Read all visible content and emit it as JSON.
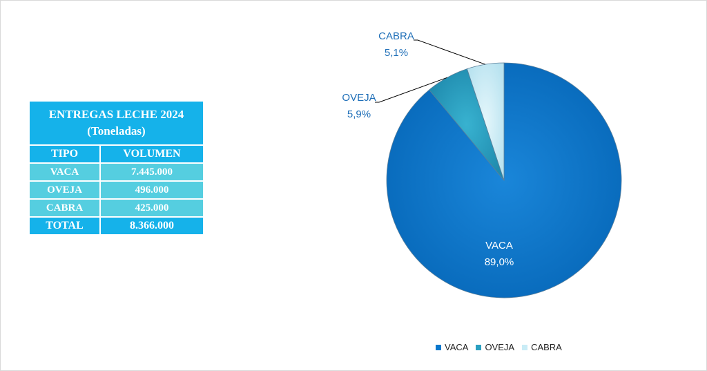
{
  "table": {
    "title_line1": "ENTREGAS LECHE 2024",
    "title_line2": "(Toneladas)",
    "headers": [
      "TIPO",
      "VOLUMEN"
    ],
    "rows": [
      {
        "tipo": "VACA",
        "volumen": "7.445.000"
      },
      {
        "tipo": "OVEJA",
        "volumen": "496.000"
      },
      {
        "tipo": "CABRA",
        "volumen": "425.000"
      }
    ],
    "total": {
      "tipo": "TOTAL",
      "volumen": "8.366.000"
    }
  },
  "chart_data": {
    "type": "pie",
    "title": "",
    "categories": [
      "VACA",
      "OVEJA",
      "CABRA"
    ],
    "values": [
      89.0,
      5.9,
      5.1
    ],
    "value_labels": [
      "89,0%",
      "5,9%",
      "5,1%"
    ],
    "colors": [
      "#0a77cc",
      "#2a9fc0",
      "#c9ecf6"
    ],
    "legend": "bottom",
    "legend_entries": [
      "VACA",
      "OVEJA",
      "CABRA"
    ]
  }
}
